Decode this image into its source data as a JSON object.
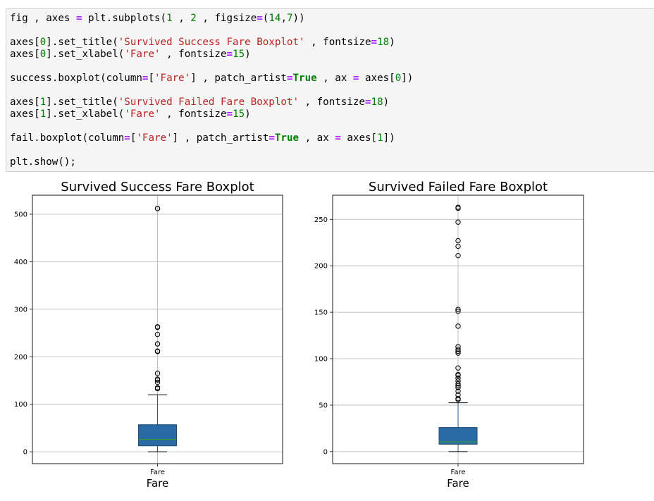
{
  "code_cell": {
    "lines": [
      [
        {
          "t": "fig , axes ",
          "c": "plain"
        },
        {
          "t": "=",
          "c": "op"
        },
        {
          "t": " plt.subplots(",
          "c": "plain"
        },
        {
          "t": "1",
          "c": "num"
        },
        {
          "t": " , ",
          "c": "plain"
        },
        {
          "t": "2",
          "c": "num"
        },
        {
          "t": " , figsize",
          "c": "plain"
        },
        {
          "t": "=",
          "c": "op"
        },
        {
          "t": "(",
          "c": "plain"
        },
        {
          "t": "14",
          "c": "num"
        },
        {
          "t": ",",
          "c": "plain"
        },
        {
          "t": "7",
          "c": "num"
        },
        {
          "t": "))",
          "c": "plain"
        }
      ],
      [],
      [
        {
          "t": "axes[",
          "c": "plain"
        },
        {
          "t": "0",
          "c": "num"
        },
        {
          "t": "].set_title(",
          "c": "plain"
        },
        {
          "t": "'Survived Success Fare Boxplot'",
          "c": "str"
        },
        {
          "t": " , fontsize",
          "c": "plain"
        },
        {
          "t": "=",
          "c": "op"
        },
        {
          "t": "18",
          "c": "num"
        },
        {
          "t": ")",
          "c": "plain"
        }
      ],
      [
        {
          "t": "axes[",
          "c": "plain"
        },
        {
          "t": "0",
          "c": "num"
        },
        {
          "t": "].set_xlabel(",
          "c": "plain"
        },
        {
          "t": "'Fare'",
          "c": "str"
        },
        {
          "t": " , fontsize",
          "c": "plain"
        },
        {
          "t": "=",
          "c": "op"
        },
        {
          "t": "15",
          "c": "num"
        },
        {
          "t": ")",
          "c": "plain"
        }
      ],
      [],
      [
        {
          "t": "success.boxplot(column",
          "c": "plain"
        },
        {
          "t": "=",
          "c": "op"
        },
        {
          "t": "[",
          "c": "plain"
        },
        {
          "t": "'Fare'",
          "c": "str"
        },
        {
          "t": "] , patch_artist",
          "c": "plain"
        },
        {
          "t": "=",
          "c": "op"
        },
        {
          "t": "True",
          "c": "kw"
        },
        {
          "t": " , ax ",
          "c": "plain"
        },
        {
          "t": "=",
          "c": "op"
        },
        {
          "t": " axes[",
          "c": "plain"
        },
        {
          "t": "0",
          "c": "num"
        },
        {
          "t": "])",
          "c": "plain"
        }
      ],
      [],
      [
        {
          "t": "axes[",
          "c": "plain"
        },
        {
          "t": "1",
          "c": "num"
        },
        {
          "t": "].set_title(",
          "c": "plain"
        },
        {
          "t": "'Survived Failed Fare Boxplot'",
          "c": "str"
        },
        {
          "t": " , fontsize",
          "c": "plain"
        },
        {
          "t": "=",
          "c": "op"
        },
        {
          "t": "18",
          "c": "num"
        },
        {
          "t": ")",
          "c": "plain"
        }
      ],
      [
        {
          "t": "axes[",
          "c": "plain"
        },
        {
          "t": "1",
          "c": "num"
        },
        {
          "t": "].set_xlabel(",
          "c": "plain"
        },
        {
          "t": "'Fare'",
          "c": "str"
        },
        {
          "t": " , fontsize",
          "c": "plain"
        },
        {
          "t": "=",
          "c": "op"
        },
        {
          "t": "15",
          "c": "num"
        },
        {
          "t": ")",
          "c": "plain"
        }
      ],
      [],
      [
        {
          "t": "fail.boxplot(column",
          "c": "plain"
        },
        {
          "t": "=",
          "c": "op"
        },
        {
          "t": "[",
          "c": "plain"
        },
        {
          "t": "'Fare'",
          "c": "str"
        },
        {
          "t": "] , patch_artist",
          "c": "plain"
        },
        {
          "t": "=",
          "c": "op"
        },
        {
          "t": "True",
          "c": "kw"
        },
        {
          "t": " , ax ",
          "c": "plain"
        },
        {
          "t": "=",
          "c": "op"
        },
        {
          "t": " axes[",
          "c": "plain"
        },
        {
          "t": "1",
          "c": "num"
        },
        {
          "t": "])",
          "c": "plain"
        }
      ],
      [],
      [
        {
          "t": "plt.show();",
          "c": "plain"
        }
      ]
    ]
  },
  "chart_data": [
    {
      "type": "boxplot",
      "title": "Survived Success Fare Boxplot",
      "xlabel": "Fare",
      "categories": [
        "Fare"
      ],
      "ylim": [
        -25,
        540
      ],
      "yticks": [
        0,
        100,
        200,
        300,
        400,
        500
      ],
      "grid": true,
      "box": {
        "whisker_low": 0,
        "q1": 12.5,
        "median": 26,
        "q3": 57,
        "whisker_high": 120
      },
      "outliers": [
        133,
        135,
        146,
        151,
        153,
        165,
        211,
        212,
        227,
        227,
        247,
        262,
        263,
        512,
        512
      ]
    },
    {
      "type": "boxplot",
      "title": "Survived Failed Fare Boxplot",
      "xlabel": "Fare",
      "categories": [
        "Fare"
      ],
      "ylim": [
        -13,
        276
      ],
      "yticks": [
        0,
        50,
        100,
        150,
        200,
        250
      ],
      "grid": true,
      "box": {
        "whisker_low": 0,
        "q1": 7.9,
        "median": 10.5,
        "q3": 26,
        "whisker_high": 52.5
      },
      "outliers": [
        56,
        57,
        61,
        65,
        69,
        71,
        73,
        76,
        79,
        82,
        83,
        90,
        106,
        108,
        110,
        113,
        135,
        151,
        153,
        211,
        221,
        227,
        247,
        262,
        263
      ]
    }
  ],
  "colors": {
    "box_fill": "#2a6ba6",
    "box_edge": "#1f4e79",
    "median": "#33a02c",
    "whisker": "#1f5a93",
    "cap": "#000000",
    "grid": "#b0b0b0",
    "axis": "#000000"
  }
}
